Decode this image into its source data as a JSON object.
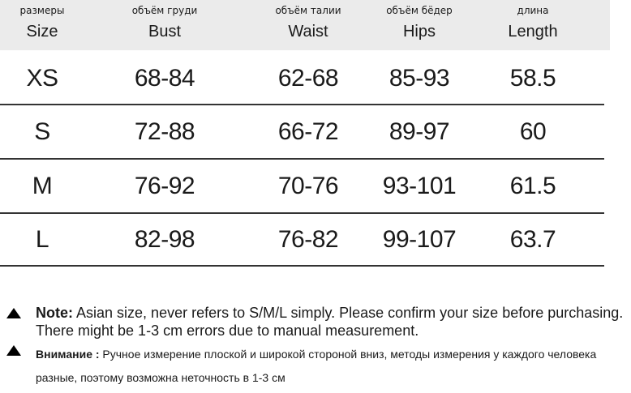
{
  "header": {
    "columns": [
      {
        "ru": "размеры",
        "en": "Size"
      },
      {
        "ru": "объём груди",
        "en": "Bust"
      },
      {
        "ru": "объём талии",
        "en": "Waist"
      },
      {
        "ru": "объём бёдер",
        "en": "Hips"
      },
      {
        "ru": "длина",
        "en": "Length"
      }
    ]
  },
  "table": {
    "rows": [
      [
        "XS",
        "68-84",
        "62-68",
        "85-93",
        "58.5"
      ],
      [
        "S",
        "72-88",
        "66-72",
        "89-97",
        "60"
      ],
      [
        "M",
        "76-92",
        "70-76",
        "93-101",
        "61.5"
      ],
      [
        "L",
        "82-98",
        "76-82",
        "99-107",
        "63.7"
      ]
    ]
  },
  "notes": [
    {
      "label": "Note:",
      "text": "Asian size, never refers to S/M/L simply. Please confirm your size before purchasing. There might be 1-3 cm errors due to manual measurement."
    },
    {
      "label": "Внимание :",
      "text": "Ручное измерение плоской и широкой стороной вниз, методы измерения у каждого человека разные, поэтому возможна неточность в 1-3 см"
    }
  ]
}
